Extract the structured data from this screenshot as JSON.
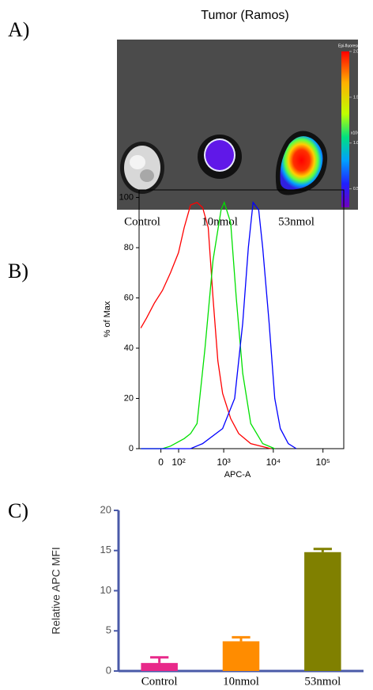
{
  "chart_data": [
    {
      "type": "image",
      "panel_label": "A)",
      "title": "Tumor (Ramos)",
      "categories": [
        "Control",
        "10nmol",
        "53nmol"
      ],
      "colorbar": {
        "title": "Epi-fluorescence",
        "unit": "x10⁹",
        "lim": [
          0.3,
          2.0
        ],
        "ticks": [
          0.5,
          {
            "value": 1,
            "label": "1.0"
          },
          1.5,
          {
            "value": 2,
            "label": "2.0"
          }
        ]
      }
    },
    {
      "type": "line",
      "panel_label": "B)",
      "xlabel": "APC-A",
      "ylabel": "% of Max",
      "xscale": "biexponential",
      "xlim": [
        -130,
        262144
      ],
      "xticks": [
        0,
        {
          "value": 100,
          "label": "10²"
        },
        {
          "value": 1000,
          "label": "10³"
        },
        {
          "value": 10000,
          "label": "10⁴"
        },
        {
          "value": 100000,
          "label": "10⁵"
        }
      ],
      "ylim": [
        0,
        103
      ],
      "yticks": [
        0,
        20,
        40,
        60,
        80,
        100
      ],
      "series": [
        {
          "color": "#ff0000",
          "x": [
            -117,
            -78,
            -33,
            8,
            50,
            99,
            142,
            202,
            281,
            369,
            483,
            606,
            760,
            950,
            1382,
            2008,
            3510,
            8885
          ],
          "values": [
            48,
            52,
            58,
            63,
            70,
            78,
            88,
            97,
            98,
            96,
            88,
            60,
            35,
            22,
            12,
            6,
            2,
            0
          ]
        },
        {
          "color": "#00e000",
          "x": [
            -117,
            8,
            50,
            142,
            202,
            281,
            414,
            606,
            883,
            1026,
            1382,
            1793,
            2420,
            3510,
            6115,
            10690
          ],
          "values": [
            0,
            0,
            1,
            4,
            6,
            10,
            40,
            75,
            95,
            98,
            90,
            60,
            30,
            10,
            2,
            0
          ]
        },
        {
          "color": "#0000ff",
          "x": [
            -117,
            202,
            369,
            950,
            1665,
            2420,
            3139,
            3913,
            5079,
            6115,
            8240,
            10690,
            13840,
            20060,
            29100
          ],
          "values": [
            0,
            0,
            2,
            8,
            20,
            50,
            80,
            98,
            95,
            80,
            50,
            20,
            8,
            2,
            0
          ]
        }
      ]
    },
    {
      "type": "bar",
      "panel_label": "C)",
      "ylabel": "Relative APC MFI",
      "categories": [
        "Control",
        "10nmol",
        "53nmol"
      ],
      "values": [
        1.0,
        3.7,
        14.8
      ],
      "errors": [
        0.7,
        0.5,
        0.4
      ],
      "colors": [
        "#e8298a",
        "#ff8c00",
        "#808000"
      ],
      "axis_color": "#4a5aa8",
      "ylim": [
        0,
        20
      ],
      "yticks": [
        0,
        5,
        10,
        15,
        20
      ]
    }
  ]
}
